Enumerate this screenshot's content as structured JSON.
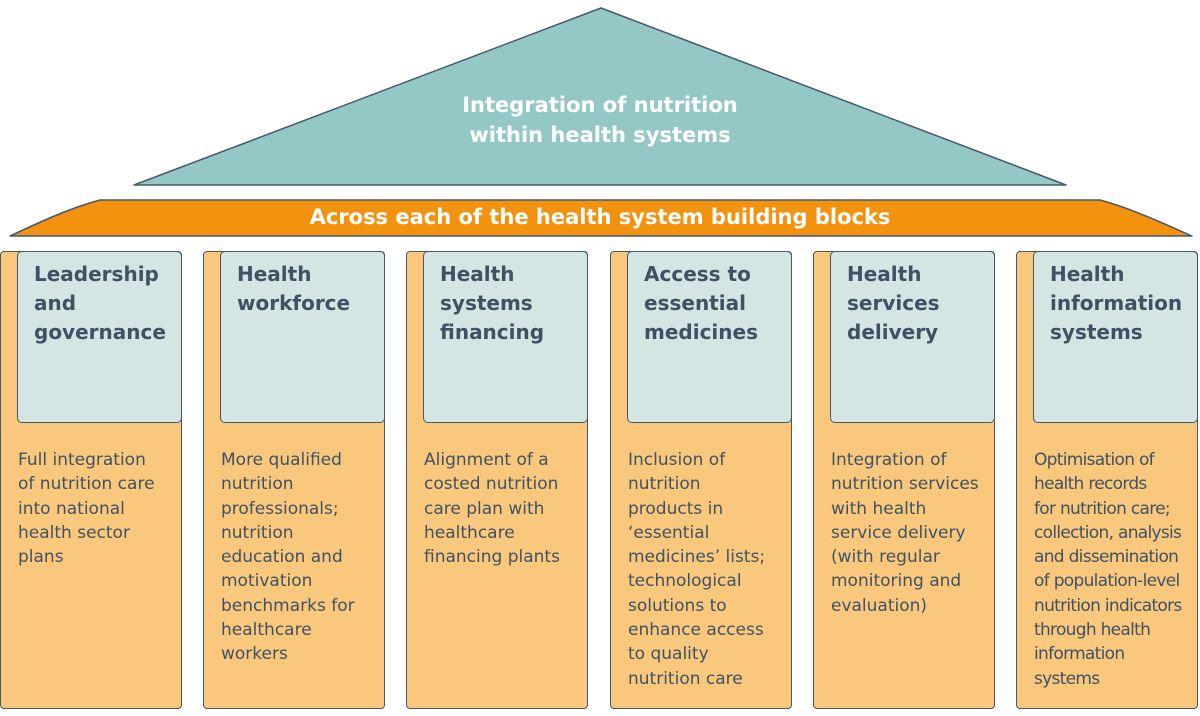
{
  "colors": {
    "roof": "#94c8c6",
    "band": "#f3920f",
    "pillar_body": "#f9c87d",
    "pillar_head": "#d3e6e4",
    "outline": "#45586a",
    "text_dark": "#3e5263",
    "text_light": "#ffffff"
  },
  "roof": {
    "title_lines": [
      "Integration of nutrition",
      "within health systems"
    ]
  },
  "band": {
    "label": "Across each of the health system building blocks"
  },
  "pillars": [
    {
      "title_lines": [
        "Leadership",
        "and",
        "governance"
      ],
      "description_lines": [
        "Full integration",
        "of nutrition care",
        "into national",
        "health sector",
        "plans"
      ]
    },
    {
      "title_lines": [
        "Health",
        "workforce"
      ],
      "description_lines": [
        "More qualified",
        "nutrition",
        "professionals;",
        "nutrition",
        "education and",
        "motivation",
        "benchmarks for",
        "healthcare",
        "workers"
      ]
    },
    {
      "title_lines": [
        "Health",
        "systems",
        "financing"
      ],
      "description_lines": [
        "Alignment of a",
        "costed nutrition",
        "care plan with",
        "healthcare",
        "financing plants"
      ]
    },
    {
      "title_lines": [
        "Access to",
        "essential",
        "medicines"
      ],
      "description_lines": [
        "Inclusion of",
        "nutrition",
        "products in",
        "‘essential",
        "medicines’ lists;",
        "technological",
        "solutions to",
        "enhance access",
        "to quality",
        "nutrition care"
      ]
    },
    {
      "title_lines": [
        "Health",
        "services",
        "delivery"
      ],
      "description_lines": [
        "Integration of",
        "nutrition services",
        "with health",
        "service delivery",
        "(with regular",
        "monitoring and",
        "evaluation)"
      ]
    },
    {
      "title_lines": [
        "Health",
        "information",
        "systems"
      ],
      "description_lines": [
        "Optimisation of",
        "health records",
        "for nutrition care;",
        "collection, analysis",
        "and dissemination",
        "of population-level",
        "nutrition indicators",
        "through health",
        "information",
        "systems"
      ]
    }
  ]
}
